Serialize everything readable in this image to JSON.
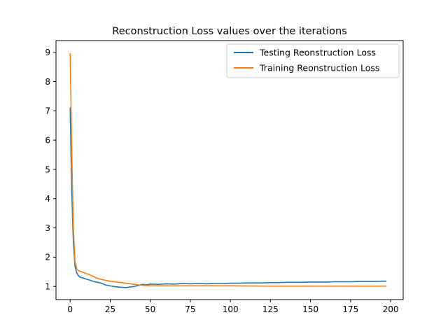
{
  "chart_data": {
    "type": "line",
    "title": "Reconstruction Loss values over the iterations",
    "xlabel": "",
    "ylabel": "",
    "xlim": [
      -8.85,
      207.85
    ],
    "ylim": [
      0.55,
      9.4
    ],
    "x_ticks": [
      0,
      25,
      50,
      75,
      100,
      125,
      150,
      175,
      200
    ],
    "y_ticks": [
      1,
      2,
      3,
      4,
      5,
      6,
      7,
      8,
      9
    ],
    "grid": false,
    "legend_position": "top-right",
    "series": [
      {
        "name": "Testing Reonstruction Loss",
        "color": "#1f77b4",
        "points": [
          [
            0,
            7.1
          ],
          [
            1,
            4.2
          ],
          [
            2,
            2.5
          ],
          [
            3,
            1.7
          ],
          [
            4,
            1.48
          ],
          [
            5,
            1.38
          ],
          [
            6,
            1.32
          ],
          [
            7,
            1.3
          ],
          [
            8,
            1.29
          ],
          [
            10,
            1.25
          ],
          [
            12,
            1.22
          ],
          [
            14,
            1.18
          ],
          [
            16,
            1.15
          ],
          [
            18,
            1.13
          ],
          [
            20,
            1.1
          ],
          [
            22,
            1.05
          ],
          [
            25,
            1.02
          ],
          [
            28,
            0.99
          ],
          [
            30,
            0.98
          ],
          [
            32,
            0.97
          ],
          [
            35,
            0.96
          ],
          [
            37,
            0.98
          ],
          [
            40,
            1.0
          ],
          [
            42,
            1.03
          ],
          [
            45,
            1.07
          ],
          [
            48,
            1.05
          ],
          [
            50,
            1.08
          ],
          [
            55,
            1.07
          ],
          [
            60,
            1.09
          ],
          [
            65,
            1.08
          ],
          [
            70,
            1.1
          ],
          [
            75,
            1.09
          ],
          [
            80,
            1.1
          ],
          [
            85,
            1.09
          ],
          [
            90,
            1.1
          ],
          [
            95,
            1.1
          ],
          [
            100,
            1.11
          ],
          [
            105,
            1.11
          ],
          [
            110,
            1.12
          ],
          [
            115,
            1.12
          ],
          [
            120,
            1.12
          ],
          [
            125,
            1.13
          ],
          [
            130,
            1.13
          ],
          [
            135,
            1.14
          ],
          [
            140,
            1.14
          ],
          [
            145,
            1.14
          ],
          [
            150,
            1.15
          ],
          [
            155,
            1.15
          ],
          [
            160,
            1.15
          ],
          [
            165,
            1.16
          ],
          [
            170,
            1.16
          ],
          [
            175,
            1.16
          ],
          [
            180,
            1.17
          ],
          [
            185,
            1.17
          ],
          [
            190,
            1.17
          ],
          [
            195,
            1.18
          ],
          [
            197,
            1.18
          ]
        ]
      },
      {
        "name": "Training Reonstruction Loss",
        "color": "#ff7f0e",
        "points": [
          [
            0,
            8.95
          ],
          [
            1,
            5.5
          ],
          [
            2,
            3.0
          ],
          [
            3,
            1.85
          ],
          [
            4,
            1.62
          ],
          [
            5,
            1.55
          ],
          [
            6,
            1.52
          ],
          [
            8,
            1.48
          ],
          [
            10,
            1.44
          ],
          [
            12,
            1.4
          ],
          [
            14,
            1.35
          ],
          [
            16,
            1.3
          ],
          [
            18,
            1.26
          ],
          [
            20,
            1.23
          ],
          [
            25,
            1.18
          ],
          [
            30,
            1.14
          ],
          [
            35,
            1.11
          ],
          [
            40,
            1.07
          ],
          [
            45,
            1.04
          ],
          [
            50,
            1.02
          ],
          [
            60,
            1.02
          ],
          [
            75,
            1.02
          ],
          [
            100,
            1.02
          ],
          [
            125,
            1.01
          ],
          [
            150,
            1.01
          ],
          [
            175,
            1.01
          ],
          [
            197,
            1.01
          ]
        ]
      }
    ]
  }
}
